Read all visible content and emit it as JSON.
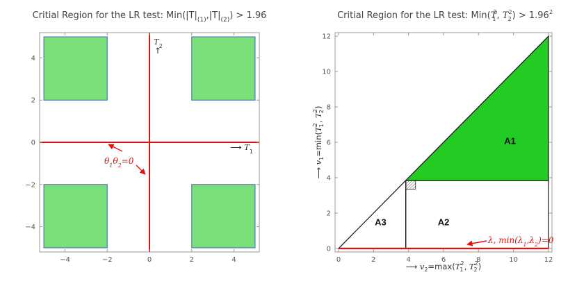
{
  "chart_data": [
    {
      "type": "region",
      "title": "Critial Region for the LR test: Min(|T|(1),|T|(2)) > 1.96",
      "title_parts": [
        "Critial Region for the LR test: Min(|T|",
        "(1)",
        ",|T|",
        "(2)",
        ") > 1.96"
      ],
      "xlim": [
        -5.2,
        5.2
      ],
      "ylim": [
        -5.2,
        5.2
      ],
      "x_ticks": [
        -4,
        -2,
        0,
        2,
        4
      ],
      "y_ticks": [
        -4,
        -2,
        0,
        2,
        4
      ],
      "x_tick_labels": [
        "−4",
        "−2",
        "0",
        "2",
        "4"
      ],
      "y_tick_labels": [
        "−4",
        "−2",
        "0",
        "2",
        "4"
      ],
      "grid": false,
      "fill_color": "#7ae07a",
      "edge_color": "#5577bb",
      "line_color": "#e01010",
      "regions": [
        {
          "x": [
            -5,
            -2
          ],
          "y": [
            2,
            5
          ]
        },
        {
          "x": [
            2,
            5
          ],
          "y": [
            2,
            5
          ]
        },
        {
          "x": [
            -5,
            -2
          ],
          "y": [
            -5,
            -2
          ]
        },
        {
          "x": [
            2,
            5
          ],
          "y": [
            -5,
            -2
          ]
        }
      ],
      "lines": [
        {
          "orientation": "vertical",
          "x": 0
        },
        {
          "orientation": "horizontal",
          "y": 0
        }
      ],
      "axis_label_x": {
        "arrow": "⟶",
        "var": "T",
        "sub": "1"
      },
      "axis_label_y": {
        "var": "T",
        "sub": "2",
        "arrow": "↑"
      },
      "annotation": {
        "text": "θ1θ2=0",
        "parts": [
          {
            "t": "θ",
            "sub": "1"
          },
          {
            "t": "θ",
            "sub": "2"
          },
          {
            "t": "=0"
          }
        ],
        "color": "#e01010"
      }
    },
    {
      "type": "region",
      "title": "Critial Region for the LR test: Min(T1², T2²) > 1.96²",
      "xlim": [
        -0.2,
        12.2
      ],
      "ylim": [
        -0.2,
        12.2
      ],
      "x_ticks": [
        0,
        2,
        4,
        6,
        8,
        10,
        12
      ],
      "y_ticks": [
        0,
        2,
        4,
        6,
        8,
        10,
        12
      ],
      "grid": false,
      "threshold": 3.8416,
      "fill_color": "#22cc22",
      "line_color": "#e01010",
      "polygons": [
        {
          "name": "A1",
          "points": [
            [
              3.8416,
              3.8416
            ],
            [
              12,
              12
            ],
            [
              12,
              3.8416
            ]
          ],
          "filled": true
        },
        {
          "name": "A2",
          "points": [
            [
              3.8416,
              0
            ],
            [
              12,
              0
            ],
            [
              12,
              3.8416
            ],
            [
              3.8416,
              3.8416
            ]
          ],
          "filled": false
        },
        {
          "name": "A3",
          "points": [
            [
              0,
              0
            ],
            [
              3.8416,
              0
            ],
            [
              3.8416,
              3.8416
            ]
          ],
          "filled": false
        }
      ],
      "region_labels": [
        {
          "text": "A1",
          "x": 9.8,
          "y": 6.1
        },
        {
          "text": "A2",
          "x": 6.0,
          "y": 1.5
        },
        {
          "text": "A3",
          "x": 2.4,
          "y": 1.5
        }
      ],
      "hatch_box": {
        "x": [
          3.8416,
          4.4
        ],
        "y": [
          3.35,
          3.8416
        ]
      },
      "xlabel": "⟶ v2=max(T1², T2²)",
      "ylabel": "⟶ v1=min(T1², T2²)",
      "annotation": {
        "text": "λ, min(λ1,λ2)=0",
        "color": "#e01010"
      }
    }
  ]
}
